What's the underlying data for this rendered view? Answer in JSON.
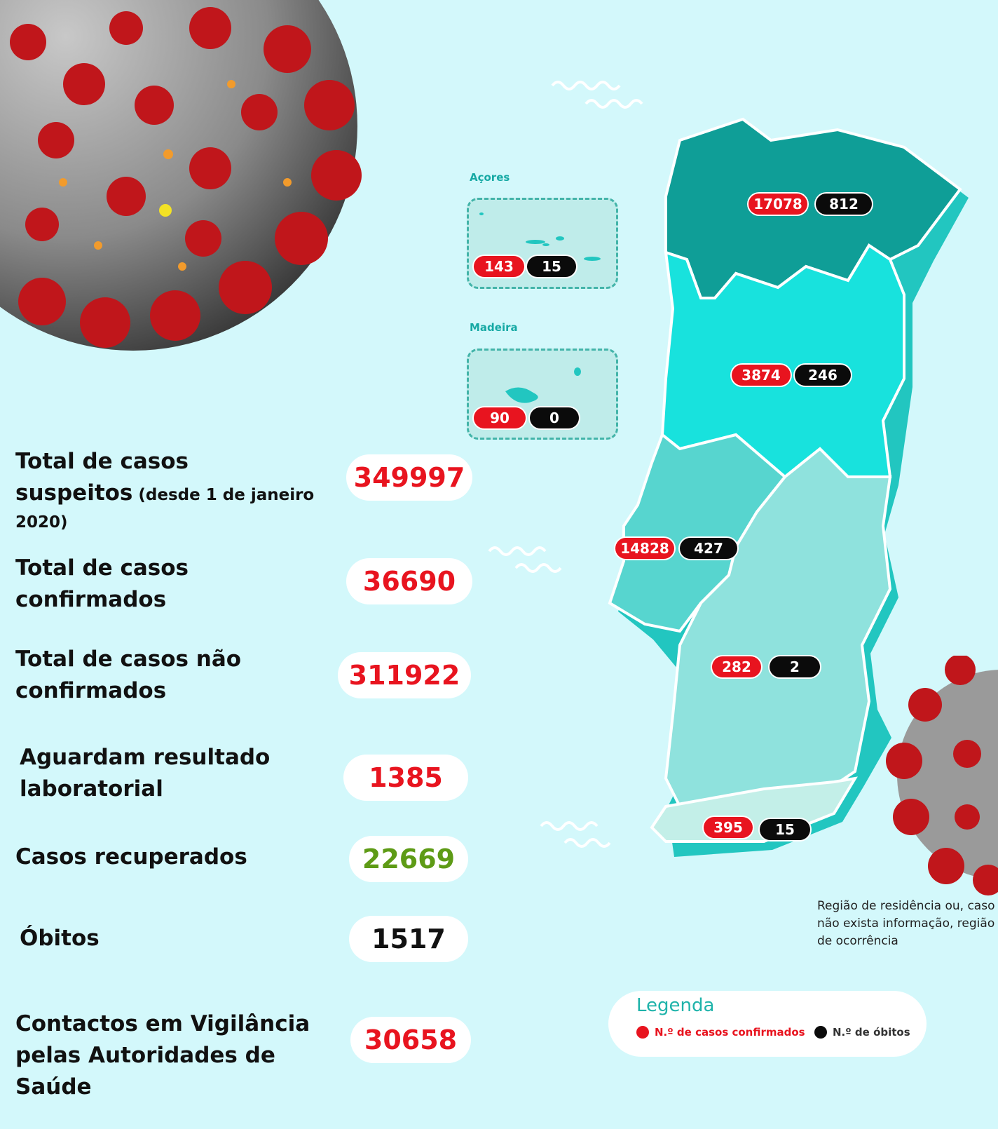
{
  "stats": [
    {
      "label": "Total de casos",
      "label2": "suspeitos",
      "label2_small": " (desde 1 de janeiro",
      "label3": "2020)",
      "value": "349997",
      "color": "#e8141f"
    },
    {
      "label": "Total de casos",
      "label2": "confirmados",
      "value": "36690",
      "color": "#e8141f"
    },
    {
      "label": "Total de casos não",
      "label2": "confirmados",
      "value": "311922",
      "color": "#e8141f"
    },
    {
      "label": "Aguardam resultado",
      "label2": "laboratorial",
      "value": "1385",
      "color": "#e8141f"
    },
    {
      "label": "Casos recuperados",
      "value": "22669",
      "color": "#5e9b16"
    },
    {
      "label": "Óbitos",
      "value": "1517",
      "color": "#111111"
    },
    {
      "label": "Contactos em Vigilância",
      "label2": "pelas Autoridades de Saúde",
      "value": "30658",
      "color": "#e8141f"
    }
  ],
  "islands": {
    "acores": {
      "title": "Açores",
      "cases": "143",
      "deaths": "15"
    },
    "madeira": {
      "title": "Madeira",
      "cases": "90",
      "deaths": "0"
    }
  },
  "regions": {
    "norte": {
      "cases": "17078",
      "deaths": "812"
    },
    "centro": {
      "cases": "3874",
      "deaths": "246"
    },
    "lisboa": {
      "cases": "14828",
      "deaths": "427"
    },
    "alentejo": {
      "cases": "282",
      "deaths": "2"
    },
    "algarve": {
      "cases": "395",
      "deaths": "15"
    }
  },
  "note": "Região de residência ou, caso não exista informação, região de ocorrência",
  "legend": {
    "title": "Legenda",
    "cases_label": "N.º de casos confirmados",
    "deaths_label": "N.º de óbitos"
  },
  "colors": {
    "background": "#d3f8fb",
    "case_red": "#e8141f",
    "death_black": "#0b0b0b",
    "norte": "#0f9e97",
    "centro": "#18e2dd",
    "lisboa": "#57d5cf",
    "alentejo": "#8fe2dd",
    "algarve": "#c3efe8"
  }
}
